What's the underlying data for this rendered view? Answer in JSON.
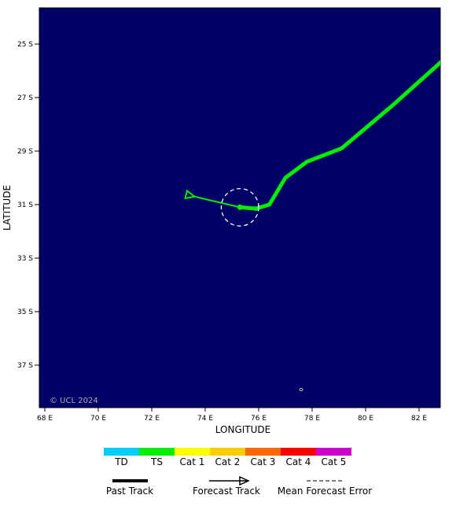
{
  "map": {
    "ocean_color": "#000066",
    "axes": {
      "xlabel": "LONGITUDE",
      "ylabel": "LATITUDE",
      "x_ticks": [
        "68 E",
        "70 E",
        "72 E",
        "74 E",
        "76 E",
        "78 E",
        "80 E",
        "82 E"
      ],
      "y_ticks": [
        "25 S",
        "27 S",
        "29 S",
        "31 S",
        "33 S",
        "35 S",
        "37 S"
      ]
    },
    "copyright": "© UCL 2024",
    "past_track": {
      "category": "TS",
      "color": "#00ee00",
      "points": [
        [
          82.9,
          -25.6
        ],
        [
          81.0,
          -27.3
        ],
        [
          79.1,
          -28.9
        ],
        [
          77.8,
          -29.4
        ],
        [
          77.0,
          -30.0
        ],
        [
          76.4,
          -31.0
        ],
        [
          75.9,
          -31.15
        ],
        [
          75.3,
          -31.1
        ]
      ]
    },
    "current_position": [
      75.3,
      -31.1
    ],
    "forecast_track": {
      "color": "#00ee00",
      "points": [
        [
          75.3,
          -31.1
        ],
        [
          73.6,
          -30.7
        ]
      ]
    },
    "error_circle": {
      "center": [
        75.3,
        -31.1
      ],
      "radius_deg": 0.7
    }
  },
  "legend": {
    "categories": [
      {
        "label": "TD",
        "color": "#00ccff"
      },
      {
        "label": "TS",
        "color": "#00ee00"
      },
      {
        "label": "Cat 1",
        "color": "#ffff00"
      },
      {
        "label": "Cat 2",
        "color": "#ffcc00"
      },
      {
        "label": "Cat 3",
        "color": "#ff6600"
      },
      {
        "label": "Cat 4",
        "color": "#ff0000"
      },
      {
        "label": "Cat 5",
        "color": "#cc00cc"
      }
    ],
    "past_track_label": "Past Track",
    "forecast_track_label": "Forecast Track",
    "mean_error_label": "Mean Forecast Error"
  }
}
